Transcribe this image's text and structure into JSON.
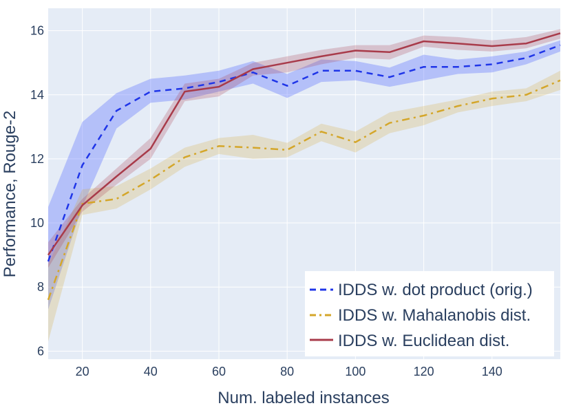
{
  "chart_data": {
    "type": "line",
    "title": "",
    "xlabel": "Num. labeled instances",
    "ylabel": "Performance, Rouge-2",
    "xlim": [
      10,
      160
    ],
    "ylim": [
      5.75,
      16.7
    ],
    "x_ticks": [
      20,
      40,
      60,
      80,
      100,
      120,
      140
    ],
    "x_tick_labels": [
      "20",
      "40",
      "60",
      "80",
      "100",
      "120",
      "140"
    ],
    "y_ticks": [
      6,
      8,
      10,
      12,
      14,
      16
    ],
    "y_tick_labels": [
      "6",
      "8",
      "10",
      "12",
      "14",
      "16"
    ],
    "grid": true,
    "background": "#e5ecf6",
    "legend_position": "bottom-right",
    "x": [
      10,
      20,
      30,
      40,
      50,
      60,
      70,
      80,
      90,
      100,
      110,
      120,
      130,
      140,
      150,
      160
    ],
    "series": [
      {
        "name": "IDDS w. dot product (orig.)",
        "color": "#1f35e8",
        "band_color": "rgba(99,120,255,0.38)",
        "dash": "dashed",
        "values": [
          8.8,
          11.8,
          13.5,
          14.1,
          14.2,
          14.4,
          14.7,
          14.28,
          14.75,
          14.75,
          14.55,
          14.87,
          14.87,
          14.95,
          15.15,
          15.55
        ],
        "lower": [
          7.3,
          10.5,
          12.95,
          13.75,
          13.85,
          14.1,
          14.35,
          13.9,
          14.4,
          14.45,
          14.25,
          14.45,
          14.65,
          14.7,
          14.95,
          15.35
        ],
        "upper": [
          10.5,
          13.15,
          14.05,
          14.5,
          14.6,
          14.75,
          15.05,
          14.65,
          15.1,
          15.05,
          14.85,
          15.25,
          15.1,
          15.2,
          15.35,
          15.7
        ]
      },
      {
        "name": "IDDS w. Mahalanobis dist.",
        "color": "#d4a62a",
        "band_color": "rgba(212,166,42,0.22)",
        "dash": "dashdot",
        "values": [
          7.6,
          10.6,
          10.75,
          11.35,
          12.05,
          12.4,
          12.35,
          12.28,
          12.85,
          12.52,
          13.12,
          13.35,
          13.65,
          13.88,
          14.0,
          14.45
        ],
        "lower": [
          6.3,
          10.25,
          10.45,
          11.05,
          11.75,
          12.15,
          12.0,
          12.05,
          12.55,
          12.2,
          12.8,
          13.05,
          13.45,
          13.65,
          13.8,
          14.15
        ],
        "upper": [
          8.7,
          11.05,
          11.15,
          11.7,
          12.35,
          12.65,
          12.75,
          12.5,
          13.1,
          12.85,
          13.45,
          13.65,
          13.85,
          14.1,
          14.2,
          14.75
        ]
      },
      {
        "name": "IDDS w. Euclidean dist.",
        "color": "#a83b4a",
        "band_color": "rgba(168,59,74,0.24)",
        "dash": "solid",
        "values": [
          9.0,
          10.55,
          11.45,
          12.32,
          14.1,
          14.25,
          14.8,
          15.0,
          15.2,
          15.38,
          15.33,
          15.67,
          15.6,
          15.52,
          15.6,
          15.92
        ],
        "lower": [
          8.6,
          10.35,
          11.2,
          12.0,
          13.8,
          13.95,
          14.6,
          14.7,
          14.95,
          15.15,
          15.1,
          15.5,
          15.4,
          15.35,
          15.45,
          15.75
        ],
        "upper": [
          9.4,
          10.75,
          11.7,
          12.65,
          14.35,
          14.5,
          15.0,
          15.2,
          15.4,
          15.55,
          15.55,
          15.85,
          15.8,
          15.7,
          15.8,
          16.05
        ]
      }
    ]
  }
}
